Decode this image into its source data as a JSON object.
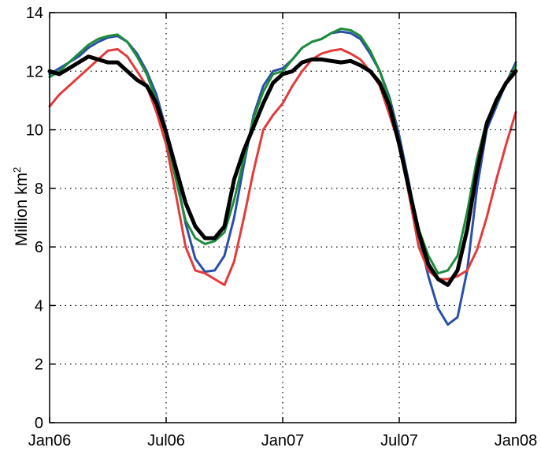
{
  "chart_data": {
    "type": "line",
    "title": "",
    "xlabel": "",
    "ylabel": "Million km",
    "ylabel_superscript": "2",
    "xlim": [
      0,
      24
    ],
    "ylim": [
      0,
      14
    ],
    "xticks": [
      {
        "value": 0,
        "label": "Jan06"
      },
      {
        "value": 6,
        "label": "Jul06"
      },
      {
        "value": 12,
        "label": "Jan07"
      },
      {
        "value": 18,
        "label": "Jul07"
      },
      {
        "value": 24,
        "label": "Jan08"
      }
    ],
    "yticks": [
      0,
      2,
      4,
      6,
      8,
      10,
      12,
      14
    ],
    "grid": true,
    "series": [
      {
        "color": "#2a4fa8",
        "width": 3,
        "x": [
          0,
          0.5,
          1,
          1.5,
          2,
          2.5,
          3,
          3.5,
          4,
          4.5,
          5,
          5.5,
          6,
          6.5,
          7,
          7.5,
          8,
          8.5,
          9,
          9.5,
          10,
          10.5,
          11,
          11.5,
          12,
          12.5,
          13,
          13.5,
          14,
          14.5,
          15,
          15.5,
          16,
          16.5,
          17,
          17.5,
          18,
          18.5,
          19,
          19.5,
          20,
          20.5,
          21,
          21.5,
          22,
          22.5,
          23,
          23.5,
          24
        ],
        "y": [
          11.9,
          12.1,
          12.3,
          12.5,
          12.8,
          13.0,
          13.15,
          13.2,
          13.0,
          12.6,
          12.0,
          11.2,
          10.0,
          8.5,
          6.8,
          5.6,
          5.15,
          5.2,
          5.7,
          7.0,
          8.8,
          10.5,
          11.5,
          12.0,
          12.1,
          12.4,
          12.8,
          13.0,
          13.1,
          13.3,
          13.35,
          13.3,
          13.1,
          12.6,
          12.0,
          11.1,
          9.8,
          8.2,
          6.4,
          5.0,
          3.9,
          3.35,
          3.6,
          5.2,
          8.0,
          10.0,
          10.8,
          11.6,
          12.3
        ]
      },
      {
        "color": "#e33b3b",
        "width": 3,
        "x": [
          0,
          0.5,
          1,
          1.5,
          2,
          2.5,
          3,
          3.5,
          4,
          4.5,
          5,
          5.5,
          6,
          6.5,
          7,
          7.5,
          8,
          8.5,
          9,
          9.5,
          10,
          10.5,
          11,
          11.5,
          12,
          12.5,
          13,
          13.5,
          14,
          14.5,
          15,
          15.5,
          16,
          16.5,
          17,
          17.5,
          18,
          18.5,
          19,
          19.5,
          20,
          20.5,
          21,
          21.5,
          22,
          22.5,
          23,
          23.5,
          24
        ],
        "y": [
          10.8,
          11.2,
          11.5,
          11.8,
          12.1,
          12.4,
          12.7,
          12.75,
          12.5,
          12.0,
          11.5,
          10.6,
          9.5,
          7.8,
          6.0,
          5.2,
          5.1,
          4.9,
          4.7,
          5.5,
          7.0,
          8.6,
          10.0,
          10.5,
          10.9,
          11.5,
          12.0,
          12.4,
          12.6,
          12.7,
          12.75,
          12.6,
          12.4,
          12.0,
          11.5,
          10.5,
          9.5,
          7.8,
          6.0,
          5.2,
          4.9,
          4.9,
          5.0,
          5.2,
          5.9,
          7.0,
          8.3,
          9.5,
          10.6
        ]
      },
      {
        "color": "#1e8c3a",
        "width": 3,
        "x": [
          0,
          0.5,
          1,
          1.5,
          2,
          2.5,
          3,
          3.5,
          4,
          4.5,
          5,
          5.5,
          6,
          6.5,
          7,
          7.5,
          8,
          8.5,
          9,
          9.5,
          10,
          10.5,
          11,
          11.5,
          12,
          12.5,
          13,
          13.5,
          14,
          14.5,
          15,
          15.5,
          16,
          16.5,
          17,
          17.5,
          18,
          18.5,
          19,
          19.5,
          20,
          20.5,
          21,
          21.5,
          22,
          22.5,
          23,
          23.5,
          24
        ],
        "y": [
          11.8,
          12.0,
          12.3,
          12.6,
          12.9,
          13.1,
          13.2,
          13.25,
          13.0,
          12.5,
          11.9,
          11.0,
          9.8,
          8.3,
          6.9,
          6.3,
          6.1,
          6.2,
          6.5,
          7.6,
          9.0,
          10.4,
          11.3,
          11.9,
          12.0,
          12.4,
          12.8,
          13.0,
          13.1,
          13.3,
          13.45,
          13.4,
          13.2,
          12.7,
          12.0,
          11.0,
          9.6,
          8.0,
          6.6,
          5.7,
          5.1,
          5.2,
          5.7,
          7.2,
          9.0,
          10.3,
          10.9,
          11.6,
          12.2
        ]
      },
      {
        "color": "#000000",
        "width": 5,
        "x": [
          0,
          0.5,
          1,
          1.5,
          2,
          2.5,
          3,
          3.5,
          4,
          4.5,
          5,
          5.5,
          6,
          6.5,
          7,
          7.5,
          8,
          8.5,
          9,
          9.5,
          10,
          10.5,
          11,
          11.5,
          12,
          12.5,
          13,
          13.5,
          14,
          14.5,
          15,
          15.5,
          16,
          16.5,
          17,
          17.5,
          18,
          18.5,
          19,
          19.5,
          20,
          20.5,
          21,
          21.5,
          22,
          22.5,
          23,
          23.5,
          24
        ],
        "y": [
          12.0,
          11.9,
          12.1,
          12.3,
          12.5,
          12.4,
          12.3,
          12.3,
          12.0,
          11.7,
          11.5,
          10.9,
          9.9,
          8.7,
          7.5,
          6.7,
          6.3,
          6.3,
          6.7,
          8.3,
          9.3,
          10.1,
          10.9,
          11.6,
          11.9,
          12.0,
          12.3,
          12.4,
          12.4,
          12.35,
          12.3,
          12.35,
          12.2,
          12.0,
          11.6,
          10.8,
          9.5,
          8.0,
          6.5,
          5.4,
          4.9,
          4.7,
          5.2,
          6.6,
          8.6,
          10.2,
          11.0,
          11.6,
          12.0
        ]
      }
    ]
  }
}
